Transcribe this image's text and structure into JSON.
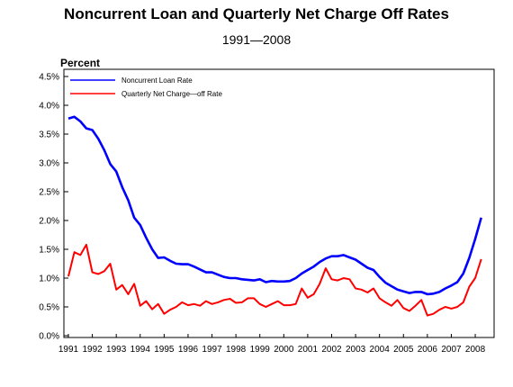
{
  "chart_data": {
    "type": "line",
    "title": "Noncurrent Loan and Quarterly Net Charge Off Rates",
    "subtitle": "1991—2008",
    "ylabel": "Percent",
    "xlabel": "",
    "ylim": [
      0,
      4.5
    ],
    "xlim": [
      1991,
      2008.6
    ],
    "y_ticks": [
      "0.0%",
      "0.5%",
      "1.0%",
      "1.5%",
      "2.0%",
      "2.5%",
      "3.0%",
      "3.5%",
      "4.0%",
      "4.5%"
    ],
    "x_ticks": [
      "1991",
      "1992",
      "1993",
      "1994",
      "1995",
      "1996",
      "1997",
      "1998",
      "1999",
      "2000",
      "2001",
      "2002",
      "2003",
      "2004",
      "2005",
      "2006",
      "2007",
      "2008"
    ],
    "grid": false,
    "legend_position": "top-left",
    "colors": {
      "series1": "#0000ff",
      "series2": "#ff0000",
      "axis": "#000000"
    },
    "series": [
      {
        "name": "Noncurrent Loan Rate",
        "x": [
          1991.0,
          1991.25,
          1991.5,
          1991.75,
          1992.0,
          1992.25,
          1992.5,
          1992.75,
          1993.0,
          1993.25,
          1993.5,
          1993.75,
          1994.0,
          1994.25,
          1994.5,
          1994.75,
          1995.0,
          1995.25,
          1995.5,
          1995.75,
          1996.0,
          1996.25,
          1996.5,
          1996.75,
          1997.0,
          1997.25,
          1997.5,
          1997.75,
          1998.0,
          1998.25,
          1998.5,
          1998.75,
          1999.0,
          1999.25,
          1999.5,
          1999.75,
          2000.0,
          2000.25,
          2000.5,
          2000.75,
          2001.0,
          2001.25,
          2001.5,
          2001.75,
          2002.0,
          2002.25,
          2002.5,
          2002.75,
          2003.0,
          2003.25,
          2003.5,
          2003.75,
          2004.0,
          2004.25,
          2004.5,
          2004.75,
          2005.0,
          2005.25,
          2005.5,
          2005.75,
          2006.0,
          2006.25,
          2006.5,
          2006.75,
          2007.0,
          2007.25,
          2007.5,
          2007.75,
          2008.0,
          2008.25
        ],
        "values": [
          3.77,
          3.8,
          3.72,
          3.6,
          3.57,
          3.42,
          3.22,
          2.98,
          2.85,
          2.58,
          2.35,
          2.05,
          1.92,
          1.7,
          1.5,
          1.35,
          1.36,
          1.3,
          1.25,
          1.24,
          1.24,
          1.2,
          1.15,
          1.1,
          1.1,
          1.06,
          1.02,
          1.0,
          1.0,
          0.98,
          0.97,
          0.96,
          0.98,
          0.93,
          0.95,
          0.94,
          0.94,
          0.95,
          1.0,
          1.08,
          1.14,
          1.2,
          1.28,
          1.34,
          1.38,
          1.38,
          1.4,
          1.36,
          1.32,
          1.25,
          1.18,
          1.14,
          1.02,
          0.92,
          0.86,
          0.8,
          0.77,
          0.74,
          0.76,
          0.76,
          0.72,
          0.73,
          0.76,
          0.82,
          0.87,
          0.93,
          1.08,
          1.35,
          1.68,
          2.05
        ]
      },
      {
        "name": "Quarterly Net Charge—off Rate",
        "x": [
          1991.0,
          1991.25,
          1991.5,
          1991.75,
          1992.0,
          1992.25,
          1992.5,
          1992.75,
          1993.0,
          1993.25,
          1993.5,
          1993.75,
          1994.0,
          1994.25,
          1994.5,
          1994.75,
          1995.0,
          1995.25,
          1995.5,
          1995.75,
          1996.0,
          1996.25,
          1996.5,
          1996.75,
          1997.0,
          1997.25,
          1997.5,
          1997.75,
          1998.0,
          1998.25,
          1998.5,
          1998.75,
          1999.0,
          1999.25,
          1999.5,
          1999.75,
          2000.0,
          2000.25,
          2000.5,
          2000.75,
          2001.0,
          2001.25,
          2001.5,
          2001.75,
          2002.0,
          2002.25,
          2002.5,
          2002.75,
          2003.0,
          2003.25,
          2003.5,
          2003.75,
          2004.0,
          2004.25,
          2004.5,
          2004.75,
          2005.0,
          2005.25,
          2005.5,
          2005.75,
          2006.0,
          2006.25,
          2006.5,
          2006.75,
          2007.0,
          2007.25,
          2007.5,
          2007.75,
          2008.0,
          2008.25
        ],
        "values": [
          1.03,
          1.45,
          1.4,
          1.58,
          1.1,
          1.07,
          1.12,
          1.25,
          0.8,
          0.88,
          0.72,
          0.9,
          0.52,
          0.6,
          0.46,
          0.55,
          0.38,
          0.45,
          0.5,
          0.58,
          0.53,
          0.55,
          0.52,
          0.6,
          0.55,
          0.58,
          0.62,
          0.64,
          0.57,
          0.58,
          0.65,
          0.65,
          0.55,
          0.5,
          0.55,
          0.6,
          0.53,
          0.53,
          0.55,
          0.82,
          0.66,
          0.72,
          0.9,
          1.17,
          0.98,
          0.96,
          1.0,
          0.98,
          0.82,
          0.8,
          0.75,
          0.82,
          0.65,
          0.58,
          0.52,
          0.62,
          0.48,
          0.43,
          0.52,
          0.62,
          0.35,
          0.38,
          0.45,
          0.5,
          0.47,
          0.5,
          0.58,
          0.85,
          1.0,
          1.33
        ]
      }
    ]
  }
}
